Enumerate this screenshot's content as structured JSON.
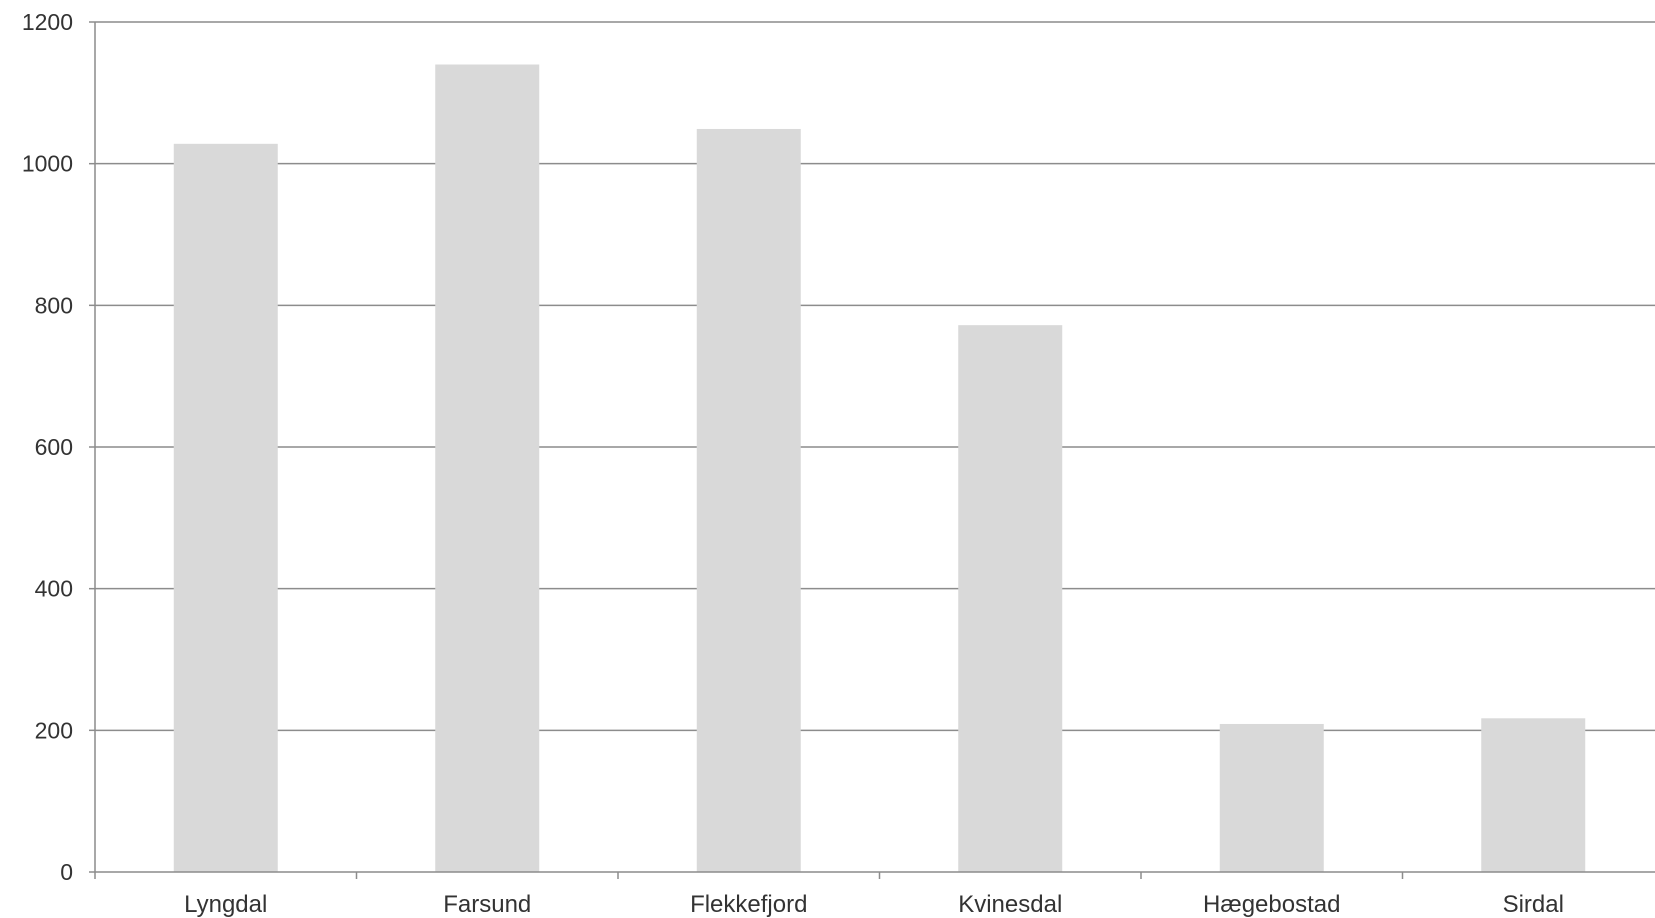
{
  "chart_data": {
    "type": "bar",
    "categories": [
      "Lyngdal",
      "Farsund",
      "Flekkefjord",
      "Kvinesdal",
      "Hægebostad",
      "Sirdal"
    ],
    "values": [
      1028,
      1140,
      1049,
      772,
      209,
      217
    ],
    "ylim": [
      0,
      1200
    ],
    "yticks": [
      "0",
      "200",
      "400",
      "600",
      "800",
      "1000",
      "1200"
    ],
    "grid": true,
    "bar_color": "#d9d9d9",
    "grid_color": "#8c8c8c",
    "axis_color": "#8c8c8c"
  }
}
